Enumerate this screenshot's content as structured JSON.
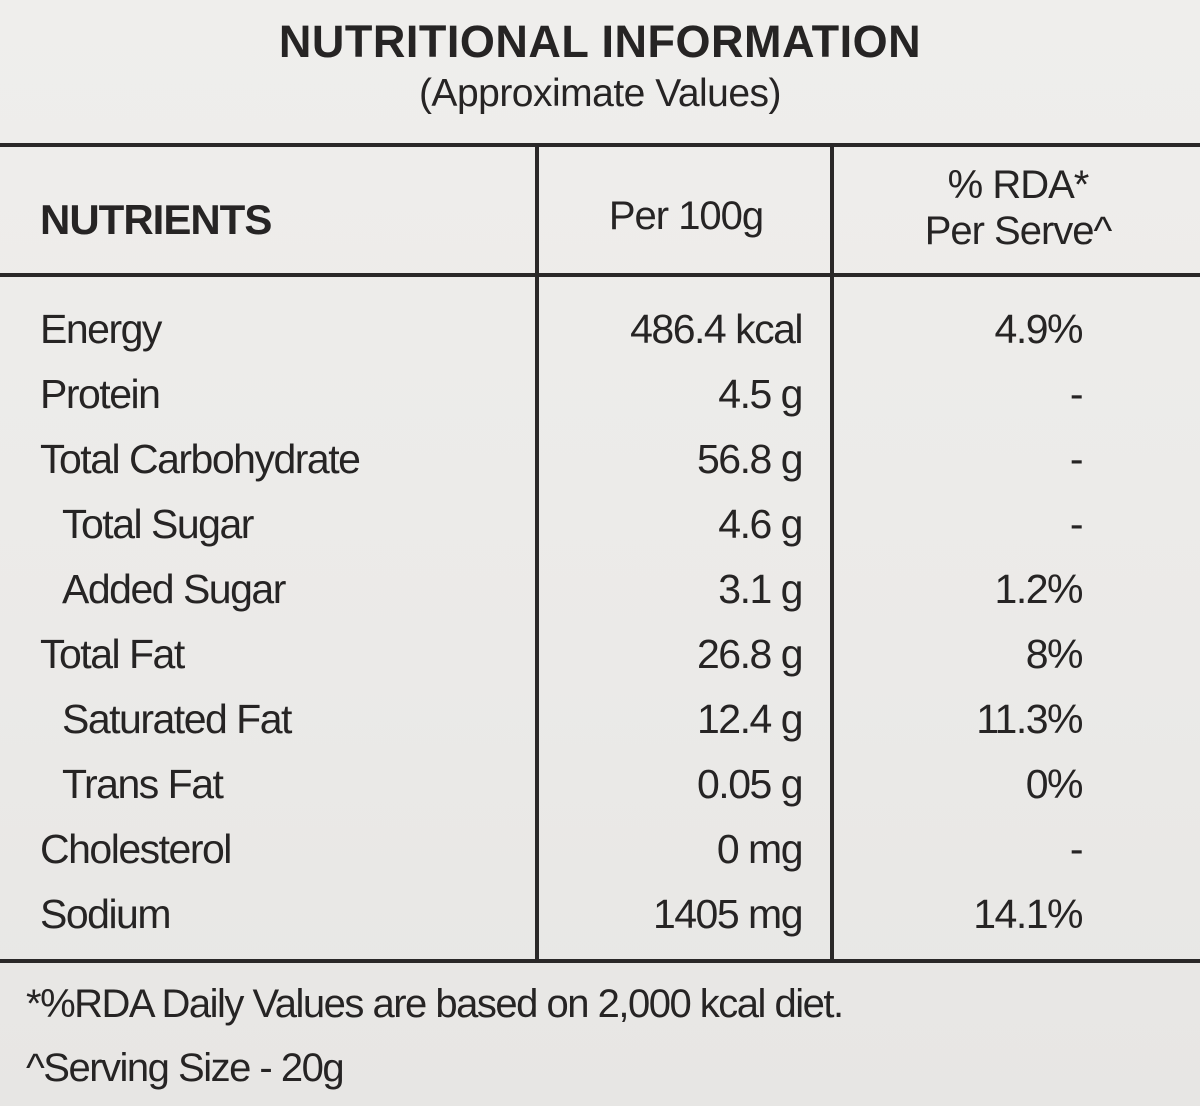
{
  "title": "NUTRITIONAL INFORMATION",
  "subtitle": "(Approximate Values)",
  "headers": {
    "nutrients": "NUTRIENTS",
    "per100": "Per 100g",
    "rda_line1": "% RDA*",
    "rda_line2": "Per Serve^"
  },
  "rows": [
    {
      "name": "Energy",
      "value": "486.4 kcal",
      "rda": "4.9%",
      "sub": false
    },
    {
      "name": "Protein",
      "value": "4.5 g",
      "rda": "-",
      "sub": false
    },
    {
      "name": "Total Carbohydrate",
      "value": "56.8 g",
      "rda": "-",
      "sub": false
    },
    {
      "name": "Total Sugar",
      "value": "4.6 g",
      "rda": "-",
      "sub": true
    },
    {
      "name": "Added Sugar",
      "value": "3.1 g",
      "rda": "1.2%",
      "sub": true
    },
    {
      "name": "Total Fat",
      "value": "26.8 g",
      "rda": "8%",
      "sub": false
    },
    {
      "name": "Saturated Fat",
      "value": "12.4 g",
      "rda": "11.3%",
      "sub": true
    },
    {
      "name": "Trans Fat",
      "value": "0.05 g",
      "rda": "0%",
      "sub": true
    },
    {
      "name": "Cholesterol",
      "value": "0 mg",
      "rda": "-",
      "sub": false
    },
    {
      "name": "Sodium",
      "value": "1405 mg",
      "rda": "14.1%",
      "sub": false
    }
  ],
  "footer": {
    "note1": "*%RDA Daily Values are based on 2,000 kcal diet.",
    "note2": "^Serving Size - 20g"
  }
}
